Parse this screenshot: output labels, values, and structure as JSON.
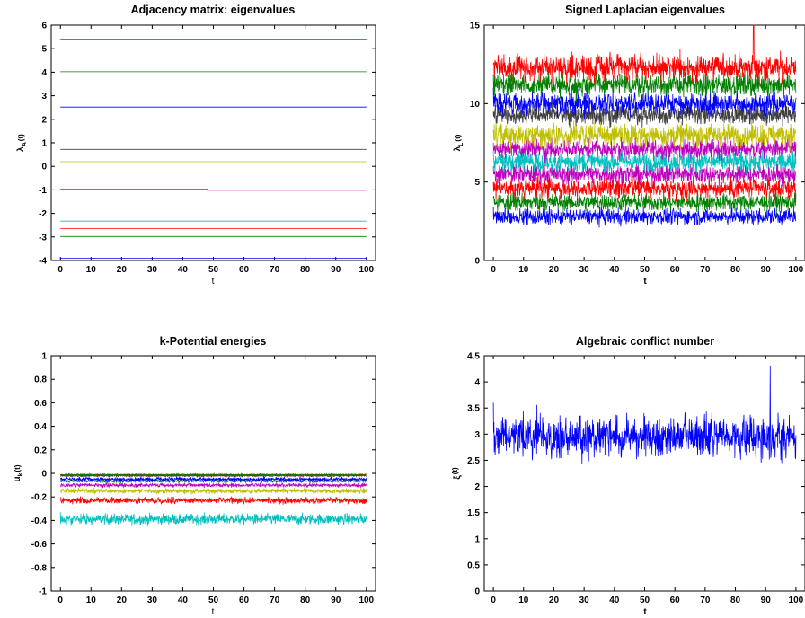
{
  "colors": {
    "blue": "#0000ff",
    "green": "#008000",
    "red": "#ff0000",
    "cyan": "#00bfbf",
    "magenta": "#bf00bf",
    "yellow": "#bfbf00",
    "black": "#404040"
  },
  "chart_data": [
    {
      "type": "line",
      "title": "Adjacency matrix: eigenvalues",
      "xlabel": "t",
      "ylabel": "λA(t)",
      "ylabel_main": "λ",
      "ylabel_sub": "A",
      "ylabel_suffix": "(t)",
      "xlim": [
        -3,
        103
      ],
      "ylim": [
        -4,
        6
      ],
      "xticks": [
        "0",
        "10",
        "20",
        "30",
        "40",
        "50",
        "60",
        "70",
        "80",
        "90",
        "100"
      ],
      "yticks": [
        "-4",
        "-3",
        "-2",
        "-1",
        "0",
        "1",
        "2",
        "3",
        "4",
        "5",
        "6"
      ],
      "series": [
        {
          "color": "red",
          "values": [
            5.4
          ]
        },
        {
          "color": "green",
          "values": [
            4.02
          ]
        },
        {
          "color": "blue",
          "values": [
            2.52
          ]
        },
        {
          "color": "black",
          "values": [
            0.72
          ]
        },
        {
          "color": "yellow",
          "values": [
            0.2
          ]
        },
        {
          "color": "magenta",
          "values": [
            -0.97,
            -1.02
          ],
          "step_at": 48
        },
        {
          "color": "cyan",
          "values": [
            -2.33
          ]
        },
        {
          "color": "red",
          "values": [
            -2.65
          ]
        },
        {
          "color": "green",
          "values": [
            -2.98
          ]
        },
        {
          "color": "blue",
          "values": [
            -3.9
          ]
        }
      ]
    },
    {
      "type": "line",
      "title": "Signed Laplacian eigenvalues",
      "xlabel": "t",
      "ylabel": "λL(t)",
      "ylabel_main": "λ",
      "ylabel_sub": "L",
      "ylabel_suffix": "(t)",
      "xlim": [
        -3,
        103
      ],
      "ylim": [
        0,
        15
      ],
      "xticks": [
        "0",
        "10",
        "20",
        "30",
        "40",
        "50",
        "60",
        "70",
        "80",
        "90",
        "100"
      ],
      "yticks": [
        "0",
        "5",
        "10",
        "15"
      ],
      "series": [
        {
          "color": "blue",
          "mean": 2.8,
          "noise": 0.5,
          "start": 3.4
        },
        {
          "color": "green",
          "mean": 3.7,
          "noise": 0.55,
          "start": 4.0
        },
        {
          "color": "red",
          "mean": 4.6,
          "noise": 0.6,
          "start": 5.0
        },
        {
          "color": "magenta",
          "mean": 5.5,
          "noise": 0.6,
          "start": 6.0
        },
        {
          "color": "cyan",
          "mean": 6.3,
          "noise": 0.65,
          "start": 7.0
        },
        {
          "color": "magenta",
          "mean": 7.1,
          "noise": 0.6,
          "start": 7.5
        },
        {
          "color": "yellow",
          "mean": 8.0,
          "noise": 0.7,
          "start": 8.3
        },
        {
          "color": "black",
          "mean": 9.3,
          "noise": 0.6,
          "start": 9.5
        },
        {
          "color": "blue",
          "mean": 10.0,
          "noise": 0.7,
          "start": 11.0
        },
        {
          "color": "green",
          "mean": 11.2,
          "noise": 0.7,
          "start": 11.8
        },
        {
          "color": "red",
          "mean": 12.3,
          "noise": 0.8,
          "start": 12.5
        }
      ]
    },
    {
      "type": "line",
      "title": "k-Potential energies",
      "xlabel": "t",
      "ylabel": "uk(t)",
      "ylabel_main": "u",
      "ylabel_sub": "k",
      "ylabel_suffix": "(t)",
      "xlim": [
        -3,
        103
      ],
      "ylim": [
        -1,
        1
      ],
      "xticks": [
        "0",
        "10",
        "20",
        "30",
        "40",
        "50",
        "60",
        "70",
        "80",
        "90",
        "100"
      ],
      "yticks": [
        "-1",
        "-0.8",
        "-0.6",
        "-0.4",
        "-0.2",
        "0",
        "0.2",
        "0.4",
        "0.6",
        "0.8",
        "1"
      ],
      "series": [
        {
          "color": "cyan",
          "mean": -0.39,
          "noise": 0.045,
          "start": -0.33
        },
        {
          "color": "red",
          "mean": -0.23,
          "noise": 0.025,
          "start": -0.2
        },
        {
          "color": "yellow",
          "mean": -0.15,
          "noise": 0.02,
          "start": -0.14
        },
        {
          "color": "magenta",
          "mean": -0.1,
          "noise": 0.015,
          "start": -0.1
        },
        {
          "color": "green",
          "mean": -0.065,
          "noise": 0.012,
          "start": -0.06
        },
        {
          "color": "blue",
          "mean": -0.05,
          "noise": 0.015,
          "start": -0.04
        },
        {
          "color": "black",
          "mean": -0.02,
          "noise": 0.008,
          "start": -0.02
        },
        {
          "color": "red",
          "mean": -0.015,
          "noise": 0.006,
          "start": -0.015
        },
        {
          "color": "green",
          "mean": -0.01,
          "noise": 0.005,
          "start": -0.01
        }
      ]
    },
    {
      "type": "line",
      "title": "Algebraic conflict number",
      "xlabel": "t",
      "ylabel": "ξ(t)",
      "ylabel_main": "ξ",
      "ylabel_sub": "",
      "ylabel_suffix": "(t)",
      "xlim": [
        -3,
        103
      ],
      "ylim": [
        0,
        4.5
      ],
      "xticks": [
        "0",
        "10",
        "20",
        "30",
        "40",
        "50",
        "60",
        "70",
        "80",
        "90",
        "100"
      ],
      "yticks": [
        "0",
        "0.5",
        "1",
        "1.5",
        "2",
        "2.5",
        "3",
        "3.5",
        "4",
        "4.5"
      ],
      "series": [
        {
          "color": "blue",
          "mean": 2.95,
          "noise": 0.38,
          "start": 3.6,
          "spike_at": 91.5,
          "spike_value": 4.3
        }
      ]
    }
  ]
}
